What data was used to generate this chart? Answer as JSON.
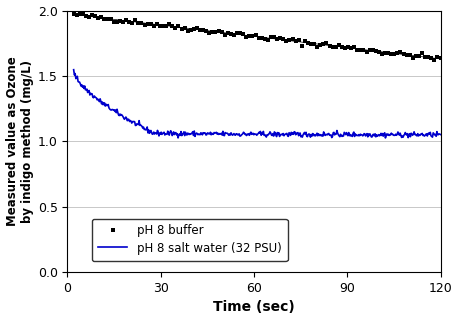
{
  "title": "",
  "xlabel": "Time (sec)",
  "ylabel": "Measured value as Ozone\nby indigo method (mg/L)",
  "xlim": [
    0,
    120
  ],
  "ylim": [
    0.0,
    2.0
  ],
  "xticks": [
    0,
    30,
    60,
    90,
    120
  ],
  "yticks": [
    0.0,
    0.5,
    1.0,
    1.5,
    2.0
  ],
  "black_line": {
    "label": "pH 8 buffer",
    "color": "#000000",
    "x_start": 2,
    "x_end": 120,
    "y_start": 1.97,
    "y_end": 1.63,
    "noise": 0.01
  },
  "blue_line": {
    "label": "pH 8 salt water (32 PSU)",
    "color": "#0000cc",
    "x_start": 2,
    "y_peak": 1.54,
    "x_drop_end": 27,
    "y_drop_end": 1.07,
    "x_end": 120,
    "y_end": 1.05,
    "noise": 0.01
  },
  "legend_loc": "lower left",
  "grid_color": "#c8c8c8",
  "background_color": "#ffffff"
}
